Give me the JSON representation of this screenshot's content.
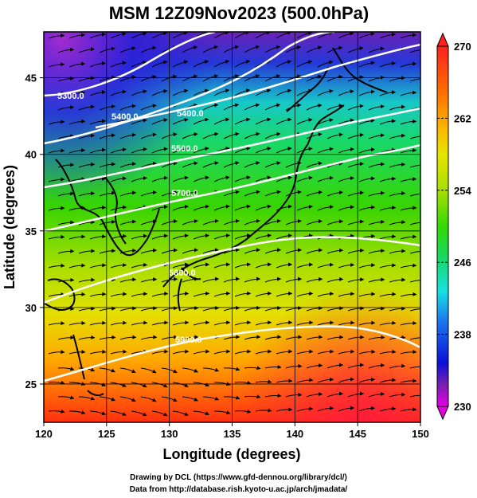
{
  "title": "MSM 12Z09Nov2023 (500.0hPa)",
  "xlabel": "Longitude (degrees)",
  "ylabel": "Latitude  (degrees)",
  "credits": [
    "Drawing by DCL (https://www.gfd-dennou.org/library/dcl/)",
    "Data from http://database.rish.kyoto-u.ac.jp/arch/jmadata/"
  ],
  "colors": {
    "colorbar_stops": [
      "#e600e6",
      "#7a1fb0",
      "#0a10d8",
      "#1b7bf0",
      "#16e2e2",
      "#16d95a",
      "#34d900",
      "#a8e000",
      "#e6e600",
      "#ffb000",
      "#ff5a00",
      "#ff2020"
    ],
    "contour": "#ffffff",
    "streamline": "#000000"
  },
  "chart_data": {
    "type": "heatmap",
    "x_ticks": [
      "120",
      "125",
      "130",
      "135",
      "140",
      "145",
      "150"
    ],
    "y_ticks": [
      "25",
      "30",
      "35",
      "40",
      "45"
    ],
    "xlim": [
      120,
      150
    ],
    "ylim": [
      22.5,
      48
    ],
    "colorbar_ticks": [
      "270",
      "262",
      "254",
      "246",
      "238",
      "230"
    ],
    "colorbar_range": [
      230,
      270
    ],
    "contour_labels": [
      "5300.0",
      "5400.0",
      "5400.0",
      "5500.0",
      "5700.0",
      "5800.0",
      "5900.0"
    ],
    "overlay": "streamlines of wind",
    "grid": true
  }
}
